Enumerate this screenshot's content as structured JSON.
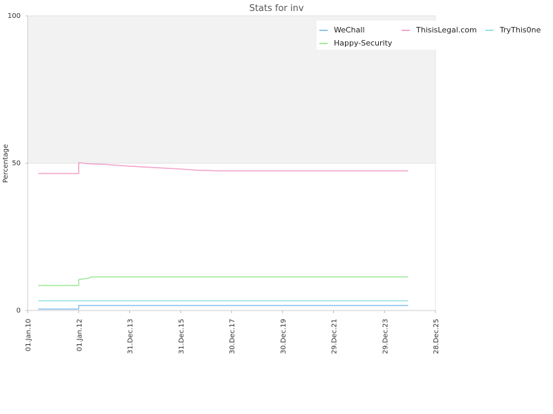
{
  "chart_data": {
    "type": "line",
    "title": "Stats for inv",
    "xlabel": "",
    "ylabel": "Percentage",
    "xlim": [
      "2010-01-01",
      "2025-12-28"
    ],
    "ylim": [
      0,
      100
    ],
    "x_ticks": [
      "01.Jan.10",
      "01.Jan.12",
      "31.Dec.13",
      "31.Dec.15",
      "30.Dec.17",
      "30.Dec.19",
      "29.Dec.21",
      "29.Dec.23",
      "28.Dec.25"
    ],
    "y_ticks": [
      "0",
      "50",
      "100"
    ],
    "grid": true,
    "legend_placement": "top-right",
    "series": [
      {
        "name": "WeChall",
        "color": "#8ec4f0",
        "x": [
          "2010-06-01",
          "2012-01-01",
          "2012-01-02",
          "2024-12-01"
        ],
        "values": [
          0.5,
          0.5,
          1.7,
          1.7
        ]
      },
      {
        "name": "ThisisLegal.com",
        "color": "#f0a6cc",
        "x": [
          "2010-06-01",
          "2012-01-01",
          "2012-01-02",
          "2012-06-01",
          "2013-01-01",
          "2014-01-01",
          "2015-01-01",
          "2016-01-01",
          "2016-09-01",
          "2017-06-01",
          "2020-01-01",
          "2024-12-01"
        ],
        "values": [
          46.5,
          46.5,
          50.2,
          49.8,
          49.6,
          49.0,
          48.5,
          48.0,
          47.6,
          47.4,
          47.4,
          47.4
        ]
      },
      {
        "name": "TryThis0ne",
        "color": "#9ae3e3",
        "x": [
          "2010-06-01",
          "2024-12-01"
        ],
        "values": [
          3.3,
          3.3
        ]
      },
      {
        "name": "Happy-Security",
        "color": "#a6e8a0",
        "x": [
          "2010-06-01",
          "2012-01-01",
          "2012-01-02",
          "2012-06-01",
          "2012-07-01",
          "2024-12-01"
        ],
        "values": [
          8.5,
          8.5,
          10.5,
          11.0,
          11.4,
          11.4
        ]
      }
    ]
  }
}
